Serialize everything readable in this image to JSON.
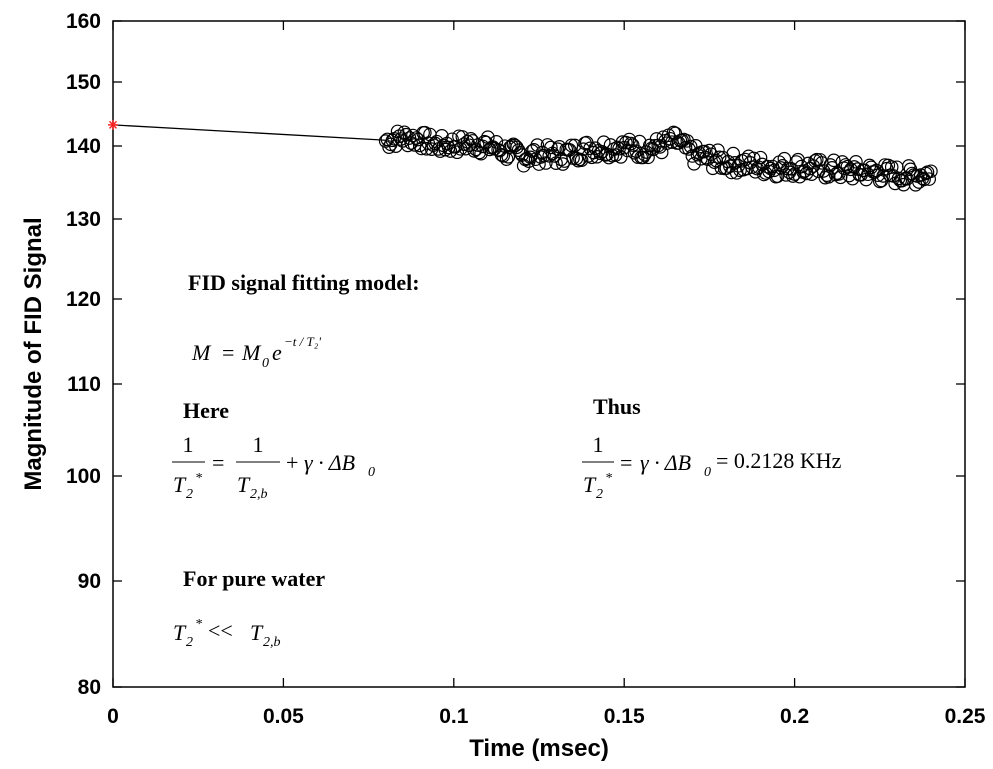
{
  "chart_data": {
    "type": "scatter",
    "xlabel": "Time (msec)",
    "ylabel": "Magnitude of FID Signal",
    "xlim": [
      0,
      0.25
    ],
    "ylim": [
      80,
      160
    ],
    "x_ticks": [
      "0",
      "0.05",
      "0.1",
      "0.15",
      "0.2",
      "0.25"
    ],
    "y_ticks": [
      "80",
      "90",
      "100",
      "110",
      "120",
      "130",
      "140",
      "150",
      "160"
    ],
    "grid": false,
    "legend": "none",
    "y_scale": "nonlinear (compressed below 100, expanded above)",
    "initial_point": {
      "x": 0,
      "y": 143.3,
      "marker": "red asterisk"
    },
    "fit_line": {
      "x": [
        0,
        0.08
      ],
      "y": [
        143.3,
        140.9
      ]
    },
    "series": [
      {
        "marker": "open circle",
        "x": [
          0.08,
          0.085,
          0.09,
          0.095,
          0.1,
          0.105,
          0.11,
          0.115,
          0.12,
          0.125,
          0.13,
          0.135,
          0.14,
          0.145,
          0.15,
          0.155,
          0.16,
          0.165,
          0.17,
          0.175,
          0.18,
          0.185,
          0.19,
          0.195,
          0.2,
          0.205,
          0.21,
          0.215,
          0.22,
          0.225,
          0.23,
          0.235,
          0.24
        ],
        "y": [
          140.8,
          141.4,
          141.0,
          140.2,
          140.3,
          140.4,
          140.1,
          139.3,
          138.6,
          138.9,
          138.7,
          139.1,
          139.7,
          139.8,
          139.9,
          139.6,
          140.0,
          140.9,
          138.8,
          138.3,
          137.8,
          137.5,
          137.3,
          137.1,
          137.2,
          136.9,
          136.8,
          136.6,
          136.5,
          136.3,
          136.0,
          135.9,
          136.3
        ]
      }
    ],
    "annotations": {
      "model_title": "FID signal fitting model:",
      "here_label": "Here",
      "thus_label": "Thus",
      "result_value": "= 0.2128  KHz",
      "water_label": "For pure water"
    }
  }
}
